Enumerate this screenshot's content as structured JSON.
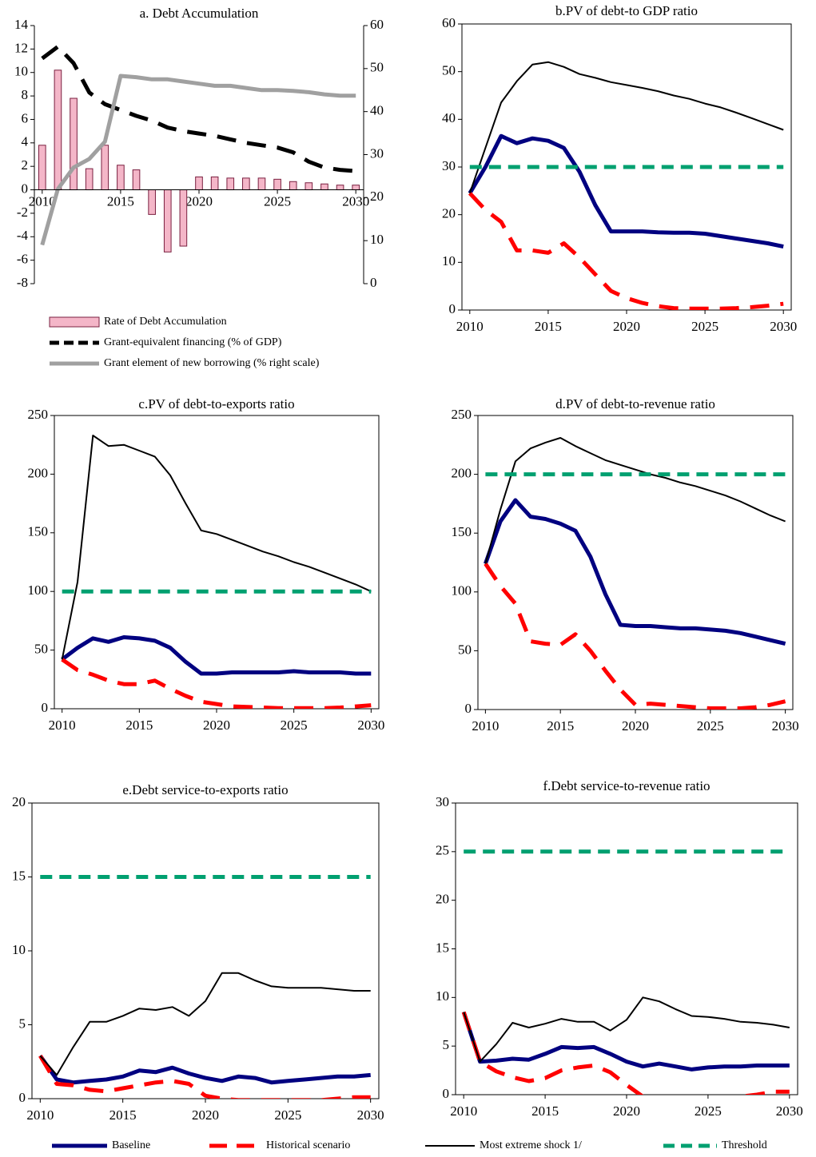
{
  "chart_data": [
    {
      "type": "combo",
      "title": "a. Debt Accumulation",
      "x": [
        2010,
        2011,
        2012,
        2013,
        2014,
        2015,
        2016,
        2017,
        2018,
        2019,
        2020,
        2021,
        2022,
        2023,
        2024,
        2025,
        2026,
        2027,
        2028,
        2029,
        2030
      ],
      "xlim": [
        2009.5,
        2030.5
      ],
      "xticks": [
        2010,
        2015,
        2020,
        2025,
        2030
      ],
      "ylim": [
        -8,
        14
      ],
      "yticks": [
        -8,
        -6,
        -4,
        -2,
        0,
        2,
        4,
        6,
        8,
        10,
        12,
        14
      ],
      "y2lim": [
        0,
        60
      ],
      "y2ticks": [
        0,
        10,
        20,
        30,
        40,
        50,
        60
      ],
      "series": [
        {
          "name": "Rate of Debt Accumulation",
          "type": "bar",
          "color": "#f4b6c8",
          "values": [
            3.8,
            10.2,
            7.8,
            1.8,
            3.8,
            2.1,
            1.7,
            -2.1,
            -5.3,
            -4.8,
            1.1,
            1.1,
            1.0,
            1.0,
            1.0,
            0.9,
            0.7,
            0.6,
            0.5,
            0.4,
            0.4
          ]
        },
        {
          "name": "Grant-equivalent financing (% of GDP)",
          "type": "line",
          "color": "#000000",
          "line_style": "dashed",
          "weight": "heavy",
          "values": [
            11.2,
            12.2,
            10.8,
            8.3,
            7.3,
            6.8,
            6.3,
            5.9,
            5.3,
            5.0,
            4.8,
            4.6,
            4.3,
            4.0,
            3.8,
            3.6,
            3.2,
            2.4,
            1.9,
            1.7,
            1.6
          ]
        },
        {
          "name": "Grant element of new borrowing (% right scale)",
          "type": "line",
          "axis": "y2",
          "color": "#a0a0a0",
          "line_style": "solid",
          "weight": "heavy",
          "values": [
            9,
            22,
            27,
            29,
            33,
            48.3,
            48,
            47.5,
            47.5,
            47,
            46.5,
            46,
            46,
            45.5,
            45,
            45,
            44.8,
            44.5,
            44,
            43.7,
            43.7
          ]
        }
      ]
    },
    {
      "type": "line",
      "title": "b.PV of debt-to GDP ratio",
      "x": [
        2010,
        2011,
        2012,
        2013,
        2014,
        2015,
        2016,
        2017,
        2018,
        2019,
        2020,
        2021,
        2022,
        2023,
        2024,
        2025,
        2026,
        2027,
        2028,
        2029,
        2030
      ],
      "xlim": [
        2009.5,
        2030.5
      ],
      "xticks": [
        2010,
        2015,
        2020,
        2025,
        2030
      ],
      "ylim": [
        0,
        60
      ],
      "yticks": [
        0,
        10,
        20,
        30,
        40,
        50,
        60
      ],
      "series": [
        {
          "name": "Baseline",
          "color": "#000080",
          "line_style": "solid",
          "weight": "heavy",
          "values": [
            24.5,
            30,
            36.5,
            35,
            36,
            35.5,
            34,
            29,
            22,
            16.5,
            16.5,
            16.5,
            16.3,
            16.2,
            16.2,
            16,
            15.5,
            15,
            14.5,
            14,
            13.3
          ]
        },
        {
          "name": "Historical scenario",
          "color": "#ff0000",
          "line_style": "dashed",
          "weight": "heavy",
          "values": [
            24.5,
            21,
            18.5,
            12.5,
            12.5,
            12,
            14,
            11,
            7.5,
            4,
            2.5,
            1.5,
            0.8,
            0.4,
            0.3,
            0.3,
            0.3,
            0.4,
            0.6,
            0.9,
            1.3
          ]
        },
        {
          "name": "Most extreme shock  1/",
          "color": "#000000",
          "line_style": "solid",
          "weight": "light",
          "values": [
            24.5,
            34,
            43.5,
            48,
            51.5,
            52,
            51,
            49.5,
            48.7,
            47.8,
            47.2,
            46.6,
            45.9,
            45,
            44.3,
            43.3,
            42.5,
            41.4,
            40.2,
            39,
            37.8
          ]
        },
        {
          "name": "Threshold",
          "color": "#00a070",
          "line_style": "dotted",
          "weight": "heavy",
          "values": [
            30,
            30,
            30,
            30,
            30,
            30,
            30,
            30,
            30,
            30,
            30,
            30,
            30,
            30,
            30,
            30,
            30,
            30,
            30,
            30,
            30
          ]
        }
      ]
    },
    {
      "type": "line",
      "title": "c.PV of debt-to-exports ratio",
      "x": [
        2010,
        2011,
        2012,
        2013,
        2014,
        2015,
        2016,
        2017,
        2018,
        2019,
        2020,
        2021,
        2022,
        2023,
        2024,
        2025,
        2026,
        2027,
        2028,
        2029,
        2030
      ],
      "xlim": [
        2009.5,
        2030.5
      ],
      "xticks": [
        2010,
        2015,
        2020,
        2025,
        2030
      ],
      "ylim": [
        0,
        250
      ],
      "yticks": [
        0,
        50,
        100,
        150,
        200,
        250
      ],
      "series": [
        {
          "name": "Baseline",
          "color": "#000080",
          "line_style": "solid",
          "weight": "heavy",
          "values": [
            42,
            52,
            60,
            57,
            61,
            60,
            58,
            52,
            40,
            30,
            30,
            31,
            31,
            31,
            31,
            32,
            31,
            31,
            31,
            30,
            30
          ]
        },
        {
          "name": "Historical scenario",
          "color": "#ff0000",
          "line_style": "dashed",
          "weight": "heavy",
          "values": [
            42,
            33,
            29,
            24,
            21,
            21,
            24,
            17,
            11,
            6,
            4,
            2,
            1.5,
            1,
            0.5,
            0.5,
            0.5,
            0.5,
            1,
            2,
            3
          ]
        },
        {
          "name": "Most extreme shock  1/",
          "color": "#000000",
          "line_style": "solid",
          "weight": "light",
          "values": [
            42,
            108,
            233,
            224,
            225,
            220,
            215,
            199,
            175,
            152,
            149,
            144,
            139,
            134,
            130,
            125,
            121,
            116,
            111,
            106,
            100
          ]
        },
        {
          "name": "Threshold",
          "color": "#00a070",
          "line_style": "dotted",
          "weight": "heavy",
          "values": [
            100,
            100,
            100,
            100,
            100,
            100,
            100,
            100,
            100,
            100,
            100,
            100,
            100,
            100,
            100,
            100,
            100,
            100,
            100,
            100,
            100
          ]
        }
      ]
    },
    {
      "type": "line",
      "title": "d.PV of debt-to-revenue ratio",
      "x": [
        2010,
        2011,
        2012,
        2013,
        2014,
        2015,
        2016,
        2017,
        2018,
        2019,
        2020,
        2021,
        2022,
        2023,
        2024,
        2025,
        2026,
        2027,
        2028,
        2029,
        2030
      ],
      "xlim": [
        2009.5,
        2030.5
      ],
      "xticks": [
        2010,
        2015,
        2020,
        2025,
        2030
      ],
      "ylim": [
        0,
        250
      ],
      "yticks": [
        0,
        50,
        100,
        150,
        200,
        250
      ],
      "series": [
        {
          "name": "Baseline",
          "color": "#000080",
          "line_style": "solid",
          "weight": "heavy",
          "values": [
            124,
            160,
            178,
            164,
            162,
            158,
            152,
            130,
            98,
            72,
            71,
            71,
            70,
            69,
            69,
            68,
            67,
            65,
            62,
            59,
            56
          ]
        },
        {
          "name": "Historical scenario",
          "color": "#ff0000",
          "line_style": "dashed",
          "weight": "heavy",
          "values": [
            124,
            105,
            90,
            58,
            56,
            55,
            64,
            50,
            33,
            17,
            4,
            5,
            4,
            3,
            2,
            1,
            1,
            1,
            2,
            4,
            7
          ]
        },
        {
          "name": "Most extreme shock  1/",
          "color": "#000000",
          "line_style": "solid",
          "weight": "light",
          "values": [
            124,
            170,
            211,
            222,
            227,
            231,
            224,
            218,
            212,
            208,
            204,
            200,
            197,
            193,
            190,
            186,
            182,
            177,
            171,
            165,
            160
          ]
        },
        {
          "name": "Threshold",
          "color": "#00a070",
          "line_style": "dotted",
          "weight": "heavy",
          "values": [
            200,
            200,
            200,
            200,
            200,
            200,
            200,
            200,
            200,
            200,
            200,
            200,
            200,
            200,
            200,
            200,
            200,
            200,
            200,
            200,
            200
          ]
        }
      ]
    },
    {
      "type": "line",
      "title": "e.Debt service-to-exports ratio",
      "x": [
        2010,
        2011,
        2012,
        2013,
        2014,
        2015,
        2016,
        2017,
        2018,
        2019,
        2020,
        2021,
        2022,
        2023,
        2024,
        2025,
        2026,
        2027,
        2028,
        2029,
        2030
      ],
      "xlim": [
        2009.5,
        2030.5
      ],
      "xticks": [
        2010,
        2015,
        2020,
        2025,
        2030
      ],
      "ylim": [
        0,
        20
      ],
      "yticks": [
        0,
        5,
        10,
        15,
        20
      ],
      "series": [
        {
          "name": "Baseline",
          "color": "#000080",
          "line_style": "solid",
          "weight": "heavy",
          "values": [
            2.9,
            1.3,
            1.1,
            1.2,
            1.3,
            1.5,
            1.9,
            1.8,
            2.1,
            1.7,
            1.4,
            1.2,
            1.5,
            1.4,
            1.1,
            1.2,
            1.3,
            1.4,
            1.5,
            1.5,
            1.6
          ]
        },
        {
          "name": "Historical scenario",
          "color": "#ff0000",
          "line_style": "dashed",
          "weight": "heavy",
          "values": [
            2.9,
            1.0,
            0.9,
            0.6,
            0.5,
            0.7,
            0.9,
            1.1,
            1.2,
            1.0,
            0.2,
            0,
            -0.1,
            -0.1,
            -0.1,
            -0.1,
            -0.1,
            -0.1,
            0,
            0.1,
            0.1
          ]
        },
        {
          "name": "Most extreme shock  1/",
          "color": "#000000",
          "line_style": "solid",
          "weight": "light",
          "values": [
            2.9,
            1.6,
            3.5,
            5.2,
            5.2,
            5.6,
            6.1,
            6.0,
            6.2,
            5.6,
            6.6,
            8.5,
            8.5,
            8.0,
            7.6,
            7.5,
            7.5,
            7.5,
            7.4,
            7.3,
            7.3
          ]
        },
        {
          "name": "Threshold",
          "color": "#00a070",
          "line_style": "dotted",
          "weight": "heavy",
          "values": [
            15,
            15,
            15,
            15,
            15,
            15,
            15,
            15,
            15,
            15,
            15,
            15,
            15,
            15,
            15,
            15,
            15,
            15,
            15,
            15,
            15
          ]
        }
      ]
    },
    {
      "type": "line",
      "title": "f.Debt service-to-revenue ratio",
      "x": [
        2010,
        2011,
        2012,
        2013,
        2014,
        2015,
        2016,
        2017,
        2018,
        2019,
        2020,
        2021,
        2022,
        2023,
        2024,
        2025,
        2026,
        2027,
        2028,
        2029,
        2030
      ],
      "xlim": [
        2009.5,
        2030.5
      ],
      "xticks": [
        2010,
        2015,
        2020,
        2025,
        2030
      ],
      "ylim": [
        0,
        30
      ],
      "yticks": [
        0,
        5,
        10,
        15,
        20,
        25,
        30
      ],
      "series": [
        {
          "name": "Baseline",
          "color": "#000080",
          "line_style": "solid",
          "weight": "heavy",
          "values": [
            8.5,
            3.4,
            3.5,
            3.7,
            3.6,
            4.2,
            4.9,
            4.8,
            4.9,
            4.2,
            3.4,
            2.9,
            3.2,
            2.9,
            2.6,
            2.8,
            2.9,
            2.9,
            3.0,
            3.0,
            3.0
          ]
        },
        {
          "name": "Historical scenario",
          "color": "#ff0000",
          "line_style": "dashed",
          "weight": "heavy",
          "values": [
            8.5,
            3.4,
            2.4,
            1.8,
            1.4,
            1.7,
            2.5,
            2.8,
            3.0,
            2.3,
            1.0,
            -0.2,
            -0.3,
            -0.3,
            -0.3,
            -0.3,
            -0.3,
            -0.2,
            0,
            0.3,
            0.3
          ]
        },
        {
          "name": "Most extreme shock  1/",
          "color": "#000000",
          "line_style": "solid",
          "weight": "light",
          "values": [
            8.5,
            3.4,
            5.2,
            7.4,
            6.9,
            7.3,
            7.8,
            7.5,
            7.5,
            6.6,
            7.7,
            10.0,
            9.6,
            8.8,
            8.1,
            8.0,
            7.8,
            7.5,
            7.4,
            7.2,
            6.9
          ]
        },
        {
          "name": "Threshold",
          "color": "#00a070",
          "line_style": "dotted",
          "weight": "heavy",
          "values": [
            25,
            25,
            25,
            25,
            25,
            25,
            25,
            25,
            25,
            25,
            25,
            25,
            25,
            25,
            25,
            25,
            25,
            25,
            25,
            25,
            25
          ]
        }
      ]
    }
  ]
}
